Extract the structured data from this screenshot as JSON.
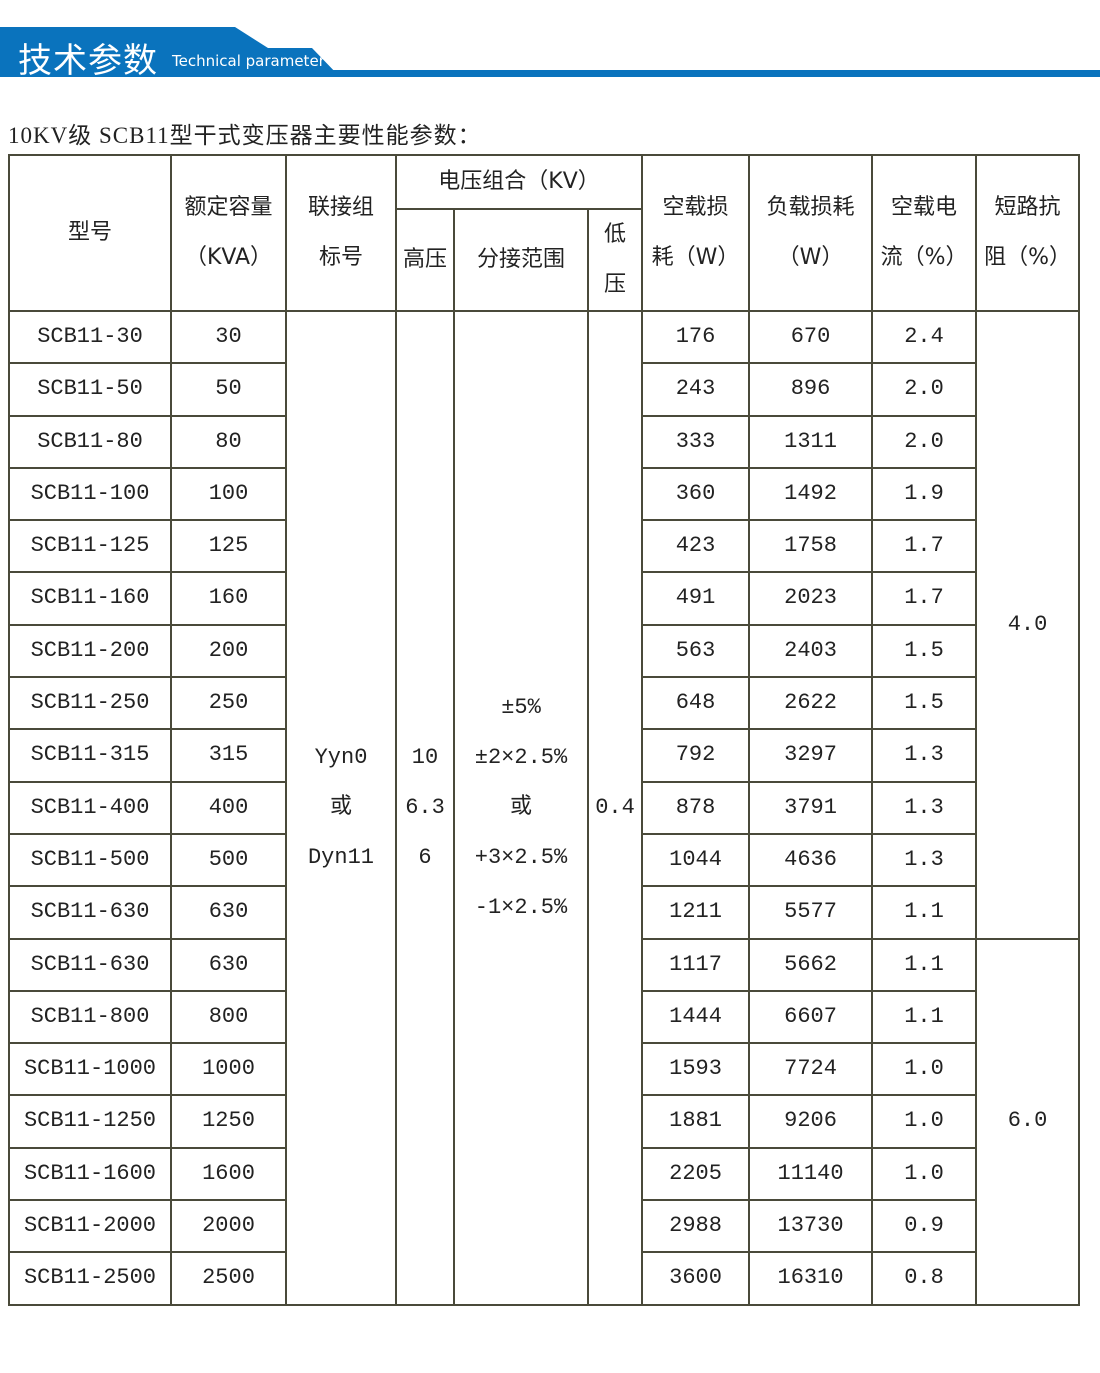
{
  "banner": {
    "title_cn": "技术参数",
    "title_en": "Technical parameter",
    "color": "#0a73bd"
  },
  "subtitle": "10KV级 SCB11型干式变压器主要性能参数：",
  "headers": {
    "model": "型号",
    "capacity": [
      "额定容量",
      "（KVA）"
    ],
    "connection": [
      "联接组",
      "标号"
    ],
    "voltage": "电压组合（KV）",
    "hv": "高压",
    "tap": "分接范围",
    "lv": [
      "低",
      "压"
    ],
    "noload_loss": [
      "空载损",
      "耗（W）"
    ],
    "load_loss": [
      "负载损耗",
      "（W）"
    ],
    "noload_current": [
      "空载电",
      "流（%）"
    ],
    "impedance": [
      "短路抗",
      "阻（%）"
    ]
  },
  "merged": {
    "connection": [
      "Yyn0",
      "或",
      "Dyn11"
    ],
    "hv": [
      "10",
      "6.3",
      "6"
    ],
    "tap": [
      "±5%",
      "±2×2.5%",
      "或",
      "+3×2.5%",
      "-1×2.5%"
    ],
    "lv": "0.4",
    "impedance_a": "4.0",
    "impedance_b": "6.0"
  },
  "rows": [
    [
      "SCB11-30",
      "30",
      "176",
      "670",
      "2.4"
    ],
    [
      "SCB11-50",
      "50",
      "243",
      "896",
      "2.0"
    ],
    [
      "SCB11-80",
      "80",
      "333",
      "1311",
      "2.0"
    ],
    [
      "SCB11-100",
      "100",
      "360",
      "1492",
      "1.9"
    ],
    [
      "SCB11-125",
      "125",
      "423",
      "1758",
      "1.7"
    ],
    [
      "SCB11-160",
      "160",
      "491",
      "2023",
      "1.7"
    ],
    [
      "SCB11-200",
      "200",
      "563",
      "2403",
      "1.5"
    ],
    [
      "SCB11-250",
      "250",
      "648",
      "2622",
      "1.5"
    ],
    [
      "SCB11-315",
      "315",
      "792",
      "3297",
      "1.3"
    ],
    [
      "SCB11-400",
      "400",
      "878",
      "3791",
      "1.3"
    ],
    [
      "SCB11-500",
      "500",
      "1044",
      "4636",
      "1.3"
    ],
    [
      "SCB11-630",
      "630",
      "1211",
      "5577",
      "1.1"
    ],
    [
      "SCB11-630",
      "630",
      "1117",
      "5662",
      "1.1"
    ],
    [
      "SCB11-800",
      "800",
      "1444",
      "6607",
      "1.1"
    ],
    [
      "SCB11-1000",
      "1000",
      "1593",
      "7724",
      "1.0"
    ],
    [
      "SCB11-1250",
      "1250",
      "1881",
      "9206",
      "1.0"
    ],
    [
      "SCB11-1600",
      "1600",
      "2205",
      "11140",
      "1.0"
    ],
    [
      "SCB11-2000",
      "2000",
      "2988",
      "13730",
      "0.9"
    ],
    [
      "SCB11-2500",
      "2500",
      "3600",
      "16310",
      "0.8"
    ]
  ]
}
